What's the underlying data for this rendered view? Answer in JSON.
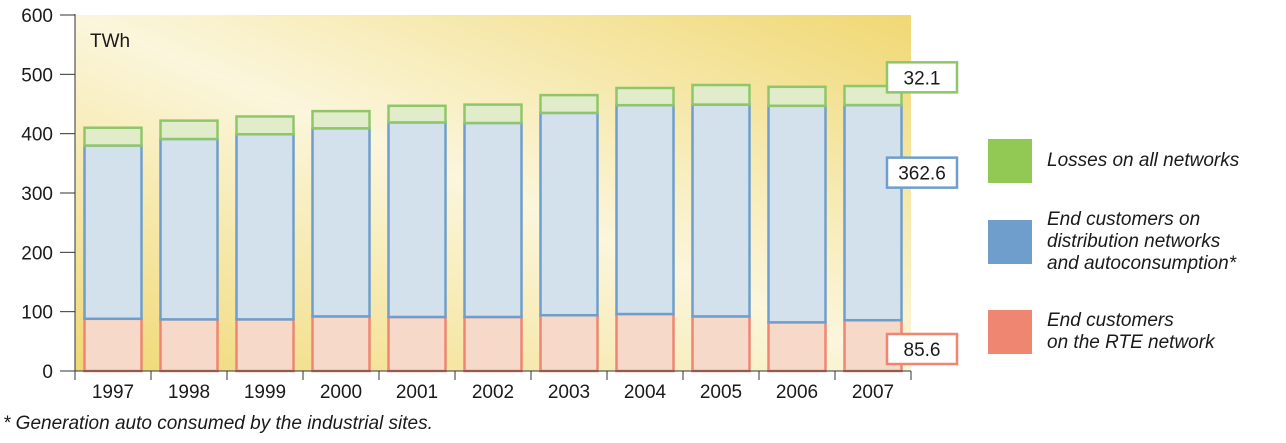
{
  "chart_data": {
    "type": "bar",
    "stacked": true,
    "unit_label": "TWh",
    "ylim": [
      0,
      600
    ],
    "yticks": [
      0,
      100,
      200,
      300,
      400,
      500,
      600
    ],
    "categories": [
      "1997",
      "1998",
      "1999",
      "2000",
      "2001",
      "2002",
      "2003",
      "2004",
      "2005",
      "2006",
      "2007"
    ],
    "series": [
      {
        "name": "End customers on the RTE network",
        "fill": "#f6d9c9",
        "stroke": "#ee8672",
        "values": [
          88,
          87,
          87,
          92,
          91,
          91,
          94,
          96,
          92,
          82,
          85.6
        ]
      },
      {
        "name": "End customers on distribution networks and autoconsumption*",
        "fill": "#d3e1ed",
        "stroke": "#6f9ecc",
        "values": [
          292,
          304,
          312,
          317,
          328,
          327,
          341,
          352,
          357,
          365,
          362.6
        ]
      },
      {
        "name": "Losses on all networks",
        "fill": "#e1ecca",
        "stroke": "#8fc66a",
        "values": [
          30,
          31,
          30,
          29,
          28,
          31,
          30,
          29,
          33,
          32,
          32.1
        ]
      }
    ],
    "data_labels": [
      "32.1",
      "362.6",
      "85.6"
    ],
    "grid": false,
    "legend_position": "right"
  },
  "legend": {
    "items": [
      {
        "lines": [
          "Losses on all networks"
        ],
        "color": "#92c955"
      },
      {
        "lines": [
          "End customers on",
          "distribution networks",
          "and autoconsumption*"
        ],
        "color": "#6f9ecc"
      },
      {
        "lines": [
          "End customers",
          "on the RTE network"
        ],
        "color": "#ee8672"
      }
    ]
  },
  "footnote": "* Generation auto consumed by the industrial sites.",
  "colors": {
    "background_light": "#fbf6dc",
    "background_gold": "#f0d873",
    "axis": "#333333"
  }
}
